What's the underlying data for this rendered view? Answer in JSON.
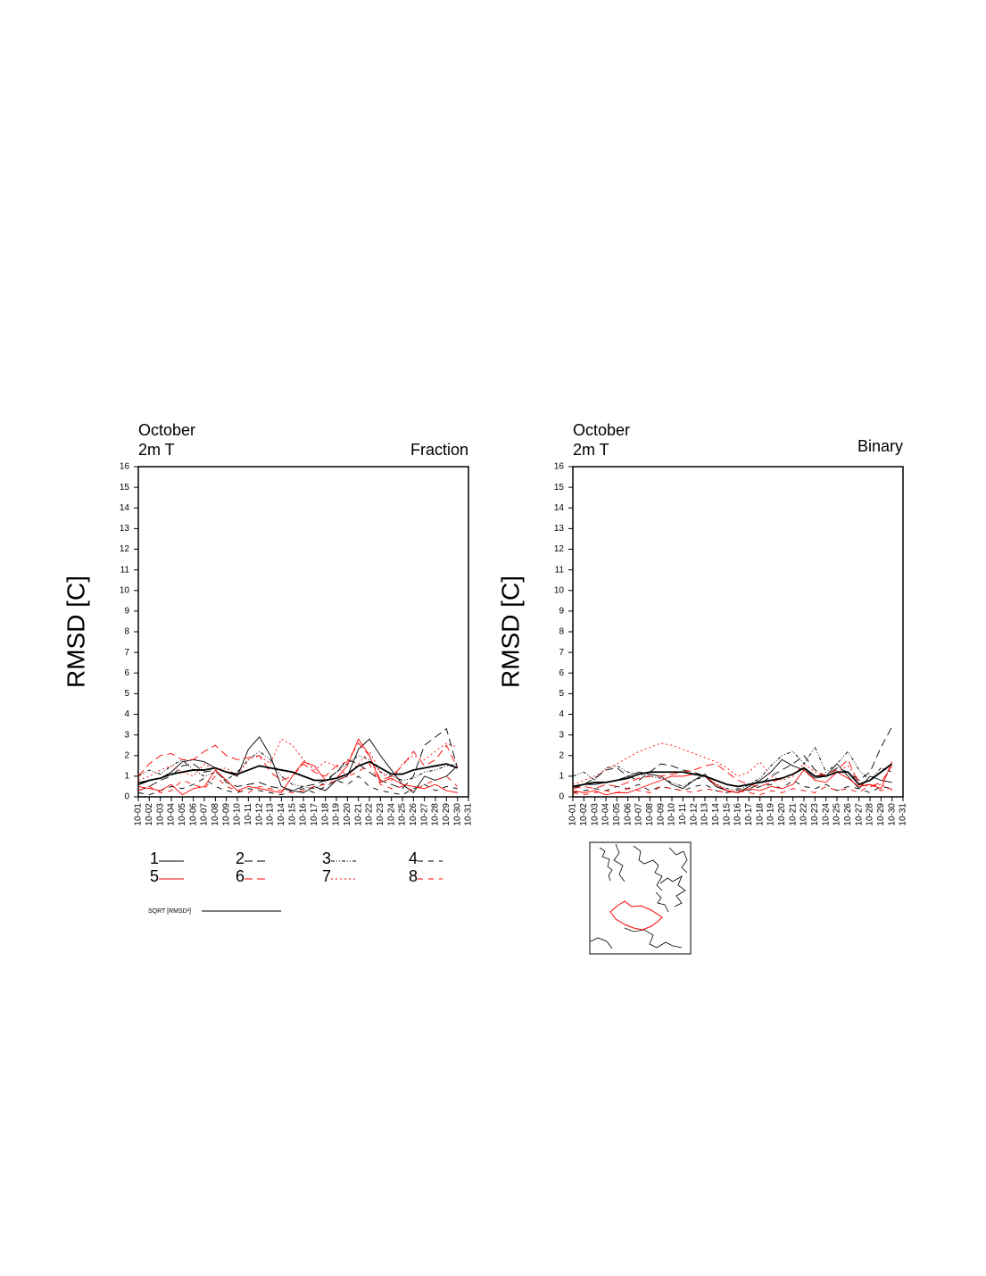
{
  "chart_data": [
    {
      "type": "line",
      "title": "October",
      "subtitle": "2m T",
      "corner_label": "Fraction",
      "ylabel": "RMSD [C]",
      "categories": [
        "10-01",
        "10-02",
        "10-03",
        "10-04",
        "10-05",
        "10-06",
        "10-07",
        "10-08",
        "10-09",
        "10-10",
        "10-11",
        "10-12",
        "10-13",
        "10-14",
        "10-15",
        "10-16",
        "10-17",
        "10-18",
        "10-19",
        "10-20",
        "10-21",
        "10-22",
        "10-23",
        "10-24",
        "10-25",
        "10-26",
        "10-27",
        "10-28",
        "10-29",
        "10-30",
        "10-31"
      ],
      "ylim": [
        0,
        16
      ],
      "yticks": [
        0,
        1,
        2,
        3,
        4,
        5,
        6,
        7,
        8,
        9,
        10,
        11,
        12,
        13,
        14,
        15,
        16
      ],
      "legend": "below",
      "series": [
        {
          "name": "1",
          "color": "#000000",
          "dash": "none",
          "width": 0.9,
          "values": [
            0.7,
            0.8,
            0.9,
            1.2,
            1.7,
            1.8,
            1.7,
            1.4,
            1.2,
            1.0,
            2.3,
            2.9,
            2.0,
            0.5,
            0.3,
            0.2,
            0.5,
            0.3,
            0.8,
            1.0,
            2.3,
            2.8,
            2.0,
            1.3,
            0.6,
            0.2,
            1.0,
            0.8,
            1.0,
            1.5,
            null
          ]
        },
        {
          "name": "2",
          "color": "#000000",
          "dash": "9,5",
          "width": 0.9,
          "values": [
            0.3,
            0.5,
            0.8,
            1.0,
            1.5,
            1.6,
            1.2,
            1.3,
            0.7,
            0.5,
            0.6,
            0.7,
            0.5,
            0.4,
            0.3,
            0.5,
            0.6,
            0.8,
            1.2,
            1.8,
            1.6,
            1.2,
            0.8,
            0.6,
            0.4,
            1.0,
            2.5,
            2.9,
            3.3,
            1.4,
            null
          ]
        },
        {
          "name": "3",
          "color": "#000000",
          "dash": "4,2,1,2,1,2",
          "width": 0.9,
          "values": [
            1.0,
            1.3,
            1.1,
            1.5,
            1.8,
            1.3,
            1.0,
            1.2,
            0.8,
            1.2,
            1.8,
            2.2,
            1.8,
            1.0,
            0.6,
            0.5,
            0.4,
            0.7,
            1.2,
            1.6,
            2.0,
            1.8,
            1.2,
            1.0,
            0.8,
            0.9,
            1.2,
            1.3,
            1.5,
            1.6,
            null
          ]
        },
        {
          "name": "4",
          "color": "#000000",
          "dash": "6,6",
          "width": 0.9,
          "values": [
            0.2,
            0.1,
            0.3,
            0.5,
            0.4,
            0.6,
            0.9,
            0.5,
            0.3,
            0.2,
            0.4,
            0.3,
            0.2,
            0.1,
            0.3,
            0.4,
            0.2,
            0.5,
            0.8,
            0.6,
            1.0,
            0.5,
            0.3,
            0.2,
            0.1,
            0.4,
            0.6,
            0.3,
            0.5,
            0.4,
            null
          ]
        },
        {
          "name": "5",
          "color": "#ff0000",
          "dash": "none",
          "width": 0.9,
          "values": [
            0.5,
            0.4,
            0.3,
            0.6,
            0.1,
            0.4,
            0.5,
            1.3,
            0.8,
            0.3,
            0.5,
            0.4,
            0.3,
            0.2,
            1.0,
            1.7,
            1.5,
            0.8,
            0.9,
            1.5,
            2.8,
            2.0,
            0.7,
            0.9,
            0.6,
            0.5,
            0.4,
            0.6,
            0.3,
            0.2,
            null
          ]
        },
        {
          "name": "6",
          "color": "#ff0000",
          "dash": "9,5",
          "width": 0.9,
          "values": [
            1.0,
            1.6,
            2.0,
            2.1,
            1.8,
            1.8,
            2.2,
            2.5,
            2.0,
            1.8,
            1.9,
            2.0,
            1.2,
            0.8,
            1.0,
            1.6,
            1.2,
            1.0,
            1.5,
            1.7,
            2.6,
            2.0,
            0.8,
            1.0,
            1.5,
            2.2,
            1.5,
            1.8,
            2.5,
            1.4,
            null
          ]
        },
        {
          "name": "7",
          "color": "#ff0000",
          "dash": "2,3",
          "width": 0.9,
          "values": [
            0.8,
            1.0,
            1.3,
            1.5,
            1.2,
            1.0,
            1.6,
            1.3,
            1.4,
            1.0,
            1.8,
            2.0,
            1.6,
            2.8,
            2.5,
            1.8,
            1.3,
            1.7,
            1.5,
            1.0,
            1.6,
            2.2,
            1.2,
            0.8,
            1.6,
            2.0,
            1.8,
            2.2,
            2.6,
            2.4,
            null
          ]
        },
        {
          "name": "8",
          "color": "#ff0000",
          "dash": "6,6",
          "width": 0.9,
          "values": [
            0.3,
            0.5,
            0.2,
            0.3,
            0.8,
            0.6,
            0.4,
            1.0,
            0.5,
            0.3,
            0.2,
            0.5,
            0.4,
            0.3,
            0.2,
            0.3,
            0.5,
            0.6,
            0.8,
            1.0,
            1.2,
            1.6,
            0.6,
            0.4,
            0.5,
            0.3,
            0.6,
            0.8,
            1.0,
            0.5,
            null
          ]
        },
        {
          "name": "SQRT [RMSD²]",
          "color": "#000000",
          "dash": "none",
          "width": 1.8,
          "values": [
            0.6,
            0.8,
            0.9,
            1.1,
            1.2,
            1.3,
            1.3,
            1.4,
            1.2,
            1.1,
            1.3,
            1.5,
            1.4,
            1.3,
            1.2,
            1.0,
            0.8,
            0.8,
            0.9,
            1.1,
            1.5,
            1.7,
            1.4,
            1.1,
            1.1,
            1.3,
            1.4,
            1.5,
            1.6,
            1.4,
            null
          ]
        }
      ]
    },
    {
      "type": "line",
      "title": "October",
      "subtitle": "2m T",
      "corner_label": "Binary",
      "ylabel": "RMSD [C]",
      "categories": [
        "10-01",
        "10-02",
        "10-03",
        "10-04",
        "10-05",
        "10-06",
        "10-07",
        "10-08",
        "10-09",
        "10-10",
        "10-11",
        "10-12",
        "10-13",
        "10-14",
        "10-15",
        "10-16",
        "10-17",
        "10-18",
        "10-19",
        "10-20",
        "10-21",
        "10-22",
        "10-23",
        "10-24",
        "10-25",
        "10-26",
        "10-27",
        "10-28",
        "10-29",
        "10-30",
        "10-31"
      ],
      "ylim": [
        0,
        16
      ],
      "yticks": [
        0,
        1,
        2,
        3,
        4,
        5,
        6,
        7,
        8,
        9,
        10,
        11,
        12,
        13,
        14,
        15,
        16
      ],
      "series": [
        {
          "color": "#000000",
          "dash": "none",
          "width": 0.9,
          "values": [
            0.5,
            0.6,
            0.6,
            0.7,
            0.8,
            1.0,
            1.2,
            1.1,
            1.0,
            0.6,
            0.4,
            0.8,
            1.1,
            0.5,
            0.3,
            0.2,
            0.5,
            0.8,
            1.2,
            1.8,
            1.5,
            1.3,
            0.9,
            1.0,
            1.6,
            1.0,
            0.4,
            1.0,
            0.8,
            0.7,
            null
          ]
        },
        {
          "color": "#000000",
          "dash": "9,5",
          "width": 0.9,
          "values": [
            0.4,
            0.6,
            0.9,
            1.3,
            1.4,
            1.0,
            0.8,
            1.2,
            1.6,
            1.5,
            1.3,
            1.2,
            1.0,
            0.5,
            0.3,
            0.2,
            0.4,
            0.6,
            1.0,
            1.3,
            1.6,
            2.0,
            1.3,
            1.0,
            1.4,
            1.2,
            0.8,
            1.2,
            2.4,
            3.4,
            null
          ]
        },
        {
          "color": "#000000",
          "dash": "4,2,1,2,1,2",
          "width": 0.9,
          "values": [
            1.0,
            1.2,
            0.8,
            1.4,
            1.5,
            1.2,
            1.1,
            1.0,
            0.9,
            0.7,
            0.5,
            0.8,
            1.0,
            0.6,
            0.4,
            0.3,
            0.6,
            0.9,
            1.5,
            2.0,
            2.2,
            1.6,
            2.4,
            1.2,
            1.6,
            2.2,
            1.3,
            0.8,
            1.4,
            1.2,
            null
          ]
        },
        {
          "color": "#000000",
          "dash": "6,6",
          "width": 0.9,
          "values": [
            0.2,
            0.3,
            0.4,
            0.3,
            0.5,
            0.4,
            0.6,
            0.3,
            0.5,
            0.4,
            0.3,
            0.5,
            0.6,
            0.3,
            0.2,
            0.4,
            0.3,
            0.5,
            0.6,
            0.4,
            0.8,
            0.5,
            0.4,
            0.6,
            0.3,
            0.5,
            0.4,
            0.2,
            0.5,
            0.4,
            null
          ]
        },
        {
          "color": "#ff0000",
          "dash": "none",
          "width": 0.9,
          "values": [
            0.3,
            0.2,
            0.3,
            0.1,
            0.2,
            0.2,
            0.4,
            0.6,
            0.8,
            1.0,
            1.0,
            1.1,
            1.0,
            0.6,
            0.3,
            0.2,
            0.4,
            0.3,
            0.5,
            0.4,
            0.6,
            1.3,
            0.8,
            0.7,
            1.2,
            0.9,
            0.5,
            0.6,
            0.4,
            1.7,
            null
          ]
        },
        {
          "color": "#ff0000",
          "dash": "9,5",
          "width": 0.9,
          "values": [
            0.4,
            0.5,
            0.4,
            0.6,
            0.5,
            0.7,
            0.9,
            1.0,
            1.0,
            1.1,
            1.2,
            1.3,
            1.5,
            1.6,
            1.2,
            0.8,
            0.6,
            0.5,
            0.7,
            0.9,
            1.1,
            1.4,
            1.0,
            1.1,
            1.3,
            1.8,
            0.6,
            0.5,
            0.7,
            1.5,
            null
          ]
        },
        {
          "color": "#ff0000",
          "dash": "2,3",
          "width": 0.9,
          "values": [
            0.6,
            0.8,
            1.0,
            1.3,
            1.6,
            1.9,
            2.2,
            2.4,
            2.6,
            2.5,
            2.3,
            2.1,
            1.9,
            1.7,
            1.4,
            1.0,
            1.2,
            1.7,
            1.0,
            0.8,
            1.0,
            1.6,
            1.2,
            1.0,
            1.2,
            1.5,
            0.8,
            0.5,
            0.6,
            0.3,
            null
          ]
        },
        {
          "color": "#ff0000",
          "dash": "6,6",
          "width": 0.9,
          "values": [
            0.2,
            0.1,
            0.2,
            0.3,
            0.2,
            0.4,
            0.3,
            0.2,
            0.5,
            0.4,
            0.3,
            0.2,
            0.4,
            0.3,
            0.2,
            0.3,
            0.2,
            0.1,
            0.3,
            0.2,
            0.4,
            0.3,
            0.2,
            0.5,
            0.3,
            0.4,
            0.2,
            0.6,
            0.3,
            0.4,
            null
          ]
        },
        {
          "color": "#000000",
          "dash": "none",
          "width": 1.8,
          "values": [
            0.5,
            0.6,
            0.7,
            0.7,
            0.8,
            0.9,
            1.1,
            1.2,
            1.2,
            1.2,
            1.2,
            1.1,
            1.0,
            0.8,
            0.6,
            0.5,
            0.6,
            0.7,
            0.8,
            0.9,
            1.1,
            1.4,
            1.0,
            1.0,
            1.2,
            1.2,
            0.6,
            0.8,
            1.2,
            1.6,
            null
          ]
        }
      ]
    }
  ]
}
